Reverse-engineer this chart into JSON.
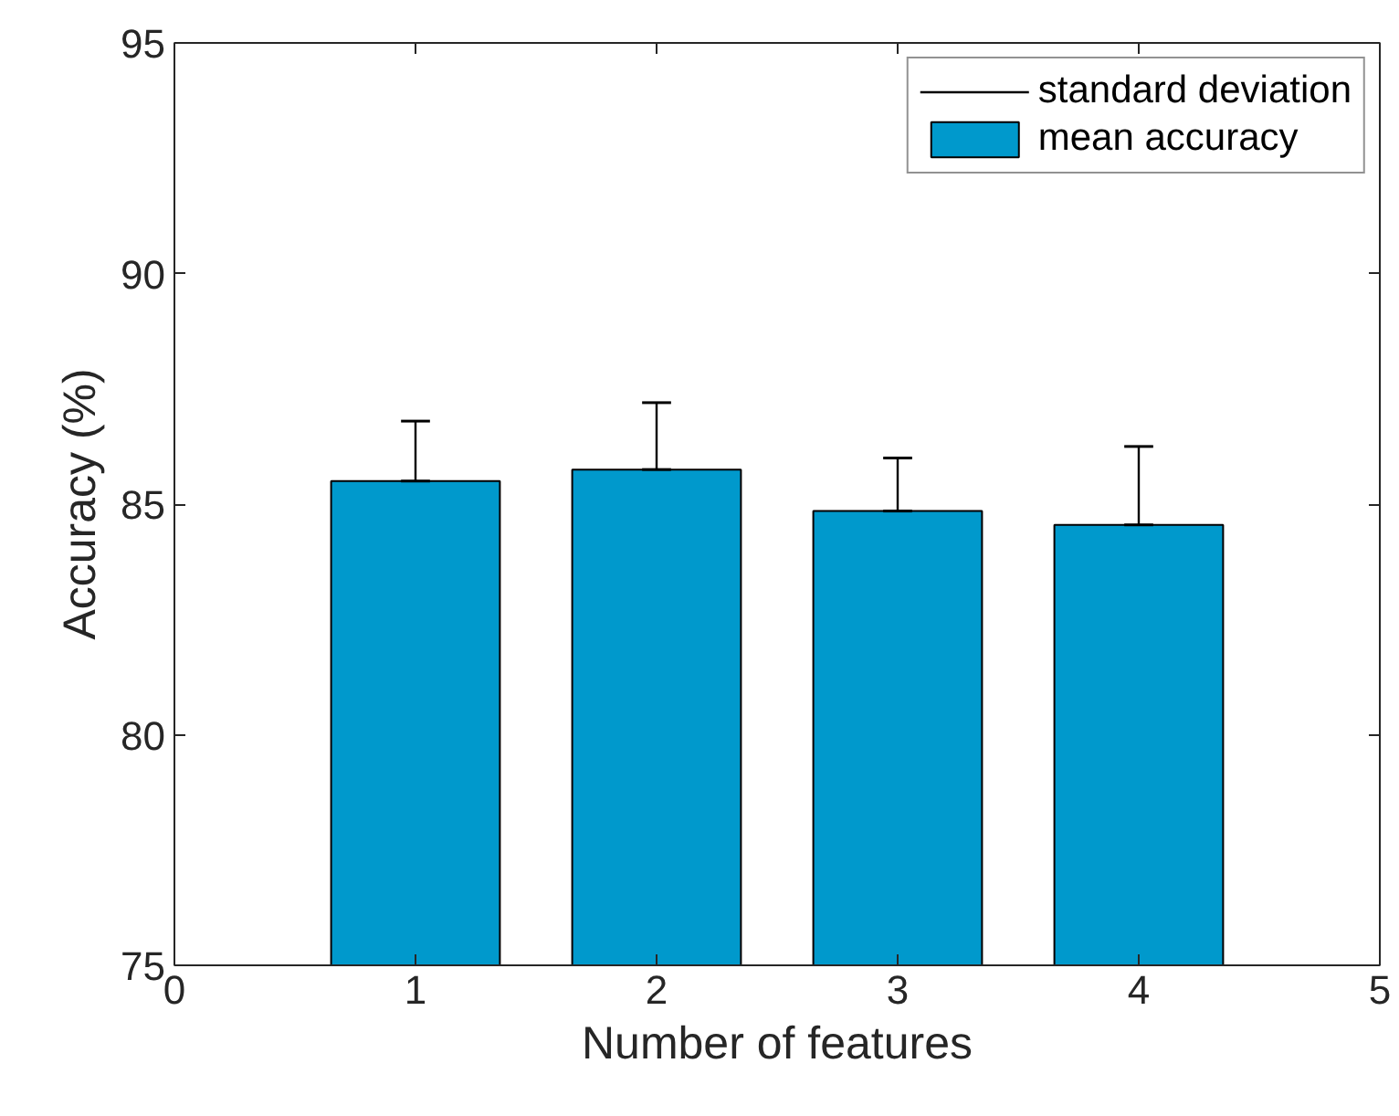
{
  "chart_data": {
    "type": "bar",
    "xlabel": "Number of features",
    "ylabel": "Accuracy (%)",
    "x": [
      1,
      2,
      3,
      4
    ],
    "series": [
      {
        "name": "mean accuracy",
        "color": "#0099cc",
        "values": [
          85.5,
          85.75,
          84.85,
          84.55
        ],
        "errors": [
          [
            85.5,
            86.8
          ],
          [
            85.75,
            87.2
          ],
          [
            84.85,
            86.0
          ],
          [
            84.55,
            86.25
          ]
        ]
      }
    ],
    "xlim": [
      0,
      5
    ],
    "xticks": [
      0,
      1,
      2,
      3,
      4,
      5
    ],
    "ylim": [
      75,
      95
    ],
    "yticks": [
      75,
      80,
      85,
      90,
      95
    ],
    "annotations": [
      "standard deviation"
    ],
    "legend": "top right",
    "grid": false
  }
}
